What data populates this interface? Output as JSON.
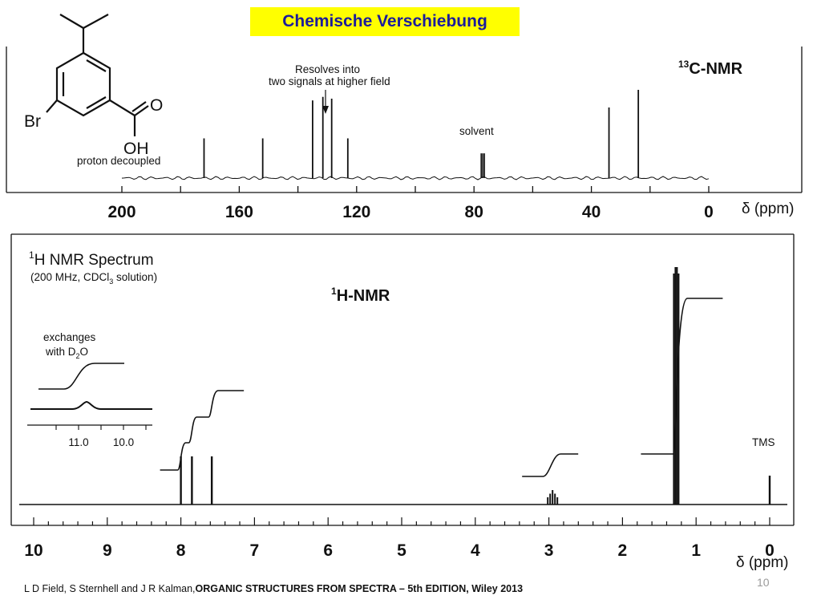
{
  "slide": {
    "title": "Chemische Verschiebung",
    "citation_authors": "L D Field, S Sternhell and J R Kalman,",
    "citation_title": "ORGANIC STRUCTURES FROM SPECTRA – 5th EDITION, Wiley 2013",
    "page_number": "10"
  },
  "molecule": {
    "substituent_br": "Br",
    "carbonyl_o": "O",
    "hydroxyl": "OH"
  },
  "colors": {
    "title_bg": "#ffff00",
    "title_text": "#1c1c9c",
    "spectrum": "#111111"
  },
  "chart_data": [
    {
      "type": "line",
      "label_sup": "13",
      "label_main": "C-NMR",
      "ylabel": "",
      "xlabel": "δ (ppm)",
      "annotations": {
        "resolves_line1": "Resolves into",
        "resolves_line2": "two signals at higher field",
        "solvent": "solvent",
        "decoupled": "proton decoupled"
      },
      "xlim": [
        200,
        0
      ],
      "x_ticks": [
        200,
        160,
        120,
        80,
        40,
        0
      ],
      "x_tick_labels": [
        "200",
        "160",
        "120",
        "80",
        "40",
        "0"
      ],
      "peaks_ppm": [
        172,
        152,
        135,
        131.5,
        128.5,
        123,
        77,
        34,
        24
      ],
      "peak_heights": [
        0.45,
        0.45,
        0.88,
        0.92,
        0.9,
        0.45,
        0.28,
        0.8,
        1.0
      ]
    },
    {
      "type": "line",
      "label_sup": "1",
      "label_main": "H-NMR",
      "panel_title_sup": "1",
      "panel_title_main": "H NMR Spectrum",
      "panel_subtitle": "(200 MHz, CDCl",
      "panel_subtitle_sub": "3",
      "panel_subtitle_end": " solution)",
      "xlabel": "δ (ppm)",
      "xlim": [
        10,
        0
      ],
      "x_ticks": [
        10,
        9,
        8,
        7,
        6,
        5,
        4,
        3,
        2,
        1,
        0
      ],
      "x_tick_labels": [
        "10",
        "9",
        "8",
        "7",
        "6",
        "5",
        "4",
        "3",
        "2",
        "1",
        "0"
      ],
      "peaks_ppm": [
        8.0,
        7.85,
        7.58,
        2.95,
        1.27,
        0.0
      ],
      "peak_heights": [
        0.2,
        0.2,
        0.2,
        0.06,
        1.0,
        0.12
      ],
      "tms_label": "TMS",
      "inset": {
        "label_line1": "exchanges",
        "label_line2": "with D",
        "label_line2_sub": "2",
        "label_line2_end": "O",
        "x_tick_labels": [
          "11.0",
          "10.0"
        ],
        "x_ticks": [
          11.0,
          10.0
        ],
        "peak_ppm": 10.6
      }
    }
  ]
}
